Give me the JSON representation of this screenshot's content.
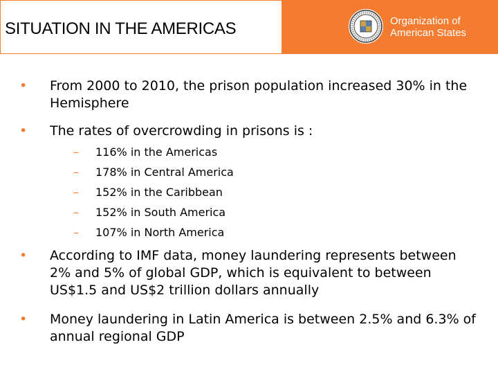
{
  "header": {
    "title": "SITUATION IN THE AMERICAS",
    "org_line1": "Organization of",
    "org_line2": "American States",
    "seal_icon": "oas-seal-icon",
    "accent_color": "#f47c30"
  },
  "bullets": [
    "From 2000 to 2010, the prison population increased 30% in the Hemisphere",
    "The rates of overcrowding in prisons is :"
  ],
  "sub_bullets": [
    "116% in the Americas",
    "178% in Central America",
    "152% in the Caribbean",
    "152% in South America",
    "107% in North America"
  ],
  "bullets2": [
    "According to IMF data, money laundering represents between 2% and 5% of global GDP, which is equivalent to between US$1.5 and US$2 trillion dollars annually",
    "Money laundering in Latin America is between 2.5% and 6.3% of annual regional GDP"
  ]
}
